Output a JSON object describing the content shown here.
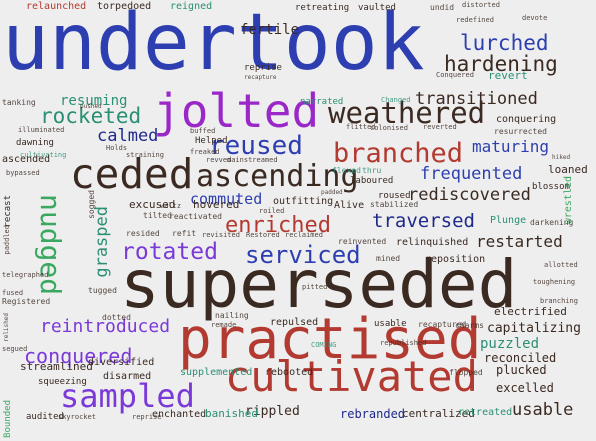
{
  "colors": {
    "background": "#eeeeee",
    "blue": "#2d3fb0",
    "purple": "#9a28c8",
    "darkbrown": "#3b2a22",
    "red": "#b23a30",
    "green": "#3aa860",
    "teal": "#2a8f74",
    "navy": "#1f2a8c",
    "violet": "#7b3ad8",
    "gray": "#8a8a8a"
  },
  "words": [
    {
      "id": "undertook",
      "text": "undertook",
      "color": "blue"
    },
    {
      "id": "superseded",
      "text": "superseded",
      "color": "darkbrown"
    },
    {
      "id": "practised",
      "text": "practised",
      "color": "red"
    },
    {
      "id": "jolted",
      "text": "jolted",
      "color": "purple"
    },
    {
      "id": "cultivated",
      "text": "cultivated",
      "color": "red"
    },
    {
      "id": "weathered",
      "text": "weathered",
      "color": "darkbrown"
    },
    {
      "id": "ceded",
      "text": "ceded",
      "color": "darkbrown"
    },
    {
      "id": "ascending",
      "text": "ascending",
      "color": "darkbrown"
    },
    {
      "id": "reused",
      "text": "reused",
      "color": "blue"
    },
    {
      "id": "branched",
      "text": "branched",
      "color": "red"
    },
    {
      "id": "sampled",
      "text": "sampled",
      "color": "violet"
    },
    {
      "id": "rotated",
      "text": "rotated",
      "color": "violet"
    },
    {
      "id": "serviced",
      "text": "serviced",
      "color": "blue"
    },
    {
      "id": "enriched",
      "text": "enriched",
      "color": "red"
    },
    {
      "id": "nudged",
      "text": "nudged",
      "color": "green"
    },
    {
      "id": "lurched",
      "text": "lurched",
      "color": "blue"
    },
    {
      "id": "hardening",
      "text": "hardening",
      "color": "darkbrown"
    },
    {
      "id": "rocketed",
      "text": "rocketed",
      "color": "teal"
    },
    {
      "id": "transitioned",
      "text": "transitioned",
      "color": "darkbrown"
    },
    {
      "id": "calmed",
      "text": "calmed",
      "color": "navy"
    },
    {
      "id": "resuming",
      "text": "resuming",
      "color": "teal"
    },
    {
      "id": "maturing",
      "text": "maturing",
      "color": "blue"
    },
    {
      "id": "frequented",
      "text": "frequented",
      "color": "blue"
    },
    {
      "id": "rediscovered",
      "text": "rediscovered",
      "color": "darkbrown"
    },
    {
      "id": "traversed",
      "text": "traversed",
      "color": "navy"
    },
    {
      "id": "commuted",
      "text": "commuted",
      "color": "blue"
    },
    {
      "id": "restarted",
      "text": "restarted",
      "color": "darkbrown"
    },
    {
      "id": "reintroduced",
      "text": "reintroduced",
      "color": "violet"
    },
    {
      "id": "conquered-big",
      "text": "conquered",
      "color": "violet"
    },
    {
      "id": "usable-big",
      "text": "usable",
      "color": "darkbrown"
    },
    {
      "id": "grasped",
      "text": "grasped",
      "color": "teal"
    },
    {
      "id": "capitalizing",
      "text": "capitalizing",
      "color": "darkbrown"
    },
    {
      "id": "puzzled",
      "text": "puzzled",
      "color": "teal"
    },
    {
      "id": "excelled",
      "text": "excelled",
      "color": "darkbrown"
    },
    {
      "id": "plucked",
      "text": "plucked",
      "color": "darkbrown"
    },
    {
      "id": "reconciled",
      "text": "reconciled",
      "color": "darkbrown"
    },
    {
      "id": "electrified",
      "text": "electrified",
      "color": "darkbrown"
    },
    {
      "id": "rippled",
      "text": "rippled",
      "color": "darkbrown"
    },
    {
      "id": "rebranded",
      "text": "rebranded",
      "color": "navy"
    },
    {
      "id": "centralized",
      "text": "centralized",
      "color": "darkbrown"
    },
    {
      "id": "retreated",
      "text": "retreated",
      "color": "teal"
    },
    {
      "id": "banished",
      "text": "banished",
      "color": "teal"
    },
    {
      "id": "enchanted",
      "text": "enchanted",
      "color": "darkbrown"
    },
    {
      "id": "rebooted",
      "text": "rebooted",
      "color": "darkbrown"
    },
    {
      "id": "supplemented",
      "text": "supplemented",
      "color": "teal"
    },
    {
      "id": "disarmed",
      "text": "disarmed",
      "color": "darkbrown"
    },
    {
      "id": "diversified",
      "text": "diversified",
      "color": "darkbrown"
    },
    {
      "id": "streamlined",
      "text": "streamlined",
      "color": "darkbrown"
    },
    {
      "id": "squeezing",
      "text": "squeezing",
      "color": "darkbrown"
    },
    {
      "id": "audited",
      "text": "audited",
      "color": "darkbrown"
    },
    {
      "id": "skyrocket",
      "text": "skyrocket",
      "color": "darkbrown"
    },
    {
      "id": "reprise-bottom",
      "text": "reprise",
      "color": "darkbrown"
    },
    {
      "id": "bounded",
      "text": "Bounded",
      "color": "green"
    },
    {
      "id": "relaunched",
      "text": "relaunched",
      "color": "red"
    },
    {
      "id": "torpedoed",
      "text": "torpedoed",
      "color": "darkbrown"
    },
    {
      "id": "reigned",
      "text": "reigned",
      "color": "teal"
    },
    {
      "id": "fertile",
      "text": "fertile",
      "color": "darkbrown"
    },
    {
      "id": "retreating",
      "text": "retreating",
      "color": "darkbrown"
    },
    {
      "id": "vaulted",
      "text": "vaulted",
      "color": "darkbrown"
    },
    {
      "id": "undid",
      "text": "undid",
      "color": "darkbrown"
    },
    {
      "id": "distorted",
      "text": "distorted",
      "color": "darkbrown"
    },
    {
      "id": "redefined",
      "text": "redefined",
      "color": "darkbrown"
    },
    {
      "id": "devote",
      "text": "devote",
      "color": "darkbrown"
    },
    {
      "id": "conquered-small",
      "text": "Conquered",
      "color": "darkbrown"
    },
    {
      "id": "revert",
      "text": "revert",
      "color": "teal"
    },
    {
      "id": "reprise-top",
      "text": "reprise",
      "color": "darkbrown"
    },
    {
      "id": "tanking",
      "text": "tanking",
      "color": "darkbrown"
    },
    {
      "id": "narrated",
      "text": "narrated",
      "color": "teal"
    },
    {
      "id": "changed",
      "text": "Changed",
      "color": "teal"
    },
    {
      "id": "conquering",
      "text": "conquering",
      "color": "darkbrown"
    },
    {
      "id": "resurrected",
      "text": "resurrected",
      "color": "darkbrown"
    },
    {
      "id": "illuminated",
      "text": "illuminated",
      "color": "darkbrown"
    },
    {
      "id": "dawning",
      "text": "dawning",
      "color": "darkbrown"
    },
    {
      "id": "cultivating",
      "text": "cultivating",
      "color": "teal"
    },
    {
      "id": "straining",
      "text": "straining",
      "color": "darkbrown"
    },
    {
      "id": "helped",
      "text": "Helped",
      "color": "darkbrown"
    },
    {
      "id": "holds",
      "text": "Holds",
      "color": "darkbrown"
    },
    {
      "id": "revved",
      "text": "revved",
      "color": "darkbrown"
    },
    {
      "id": "mainstreamed",
      "text": "mainstreamed",
      "color": "darkbrown"
    },
    {
      "id": "flitted",
      "text": "flitted",
      "color": "darkbrown"
    },
    {
      "id": "colonised",
      "text": "colonised",
      "color": "darkbrown"
    },
    {
      "id": "reverted",
      "text": "reverted",
      "color": "darkbrown"
    },
    {
      "id": "flexed",
      "text": "flexed",
      "color": "teal"
    },
    {
      "id": "thru",
      "text": "thru",
      "color": "teal"
    },
    {
      "id": "laboured",
      "text": "laboured",
      "color": "darkbrown"
    },
    {
      "id": "ascended",
      "text": "ascended",
      "color": "darkbrown"
    },
    {
      "id": "bypassed",
      "text": "bypassed",
      "color": "darkbrown"
    },
    {
      "id": "loaned",
      "text": "loaned",
      "color": "darkbrown"
    },
    {
      "id": "blossom",
      "text": "blossom",
      "color": "darkbrown"
    },
    {
      "id": "excused",
      "text": "excused",
      "color": "darkbrown"
    },
    {
      "id": "hovered",
      "text": "hovered",
      "color": "darkbrown"
    },
    {
      "id": "outfitting",
      "text": "outfitting",
      "color": "darkbrown"
    },
    {
      "id": "alive",
      "text": "Alive",
      "color": "darkbrown"
    },
    {
      "id": "stabilized",
      "text": "stabilized",
      "color": "darkbrown"
    },
    {
      "id": "roused",
      "text": "roused",
      "color": "darkbrown"
    },
    {
      "id": "wrestled",
      "text": "wrestled",
      "color": "green"
    },
    {
      "id": "tilted",
      "text": "tilted",
      "color": "darkbrown"
    },
    {
      "id": "reactivated",
      "text": "reactivated",
      "color": "darkbrown"
    },
    {
      "id": "waltz",
      "text": "waltz",
      "color": "darkbrown"
    },
    {
      "id": "roiled",
      "text": "roiled",
      "color": "darkbrown"
    },
    {
      "id": "plunge",
      "text": "Plunge",
      "color": "teal"
    },
    {
      "id": "darkening",
      "text": "darkening",
      "color": "darkbrown"
    },
    {
      "id": "recast",
      "text": "recast",
      "color": "darkbrown"
    },
    {
      "id": "sogged",
      "text": "sogged",
      "color": "darkbrown"
    },
    {
      "id": "resided",
      "text": "resided",
      "color": "darkbrown"
    },
    {
      "id": "refit",
      "text": "refit",
      "color": "darkbrown"
    },
    {
      "id": "revisited",
      "text": "revisited",
      "color": "darkbrown"
    },
    {
      "id": "restored",
      "text": "Restored",
      "color": "darkbrown"
    },
    {
      "id": "reclaimed",
      "text": "reclaimed",
      "color": "darkbrown"
    },
    {
      "id": "reinvented",
      "text": "reinvented",
      "color": "darkbrown"
    },
    {
      "id": "relinquished",
      "text": "relinquished",
      "color": "darkbrown"
    },
    {
      "id": "mined",
      "text": "mined",
      "color": "darkbrown"
    },
    {
      "id": "reposition",
      "text": "reposition",
      "color": "darkbrown"
    },
    {
      "id": "allotted",
      "text": "allotted",
      "color": "darkbrown"
    },
    {
      "id": "toughening",
      "text": "toughening",
      "color": "darkbrown"
    },
    {
      "id": "tugged",
      "text": "tugged",
      "color": "darkbrown"
    },
    {
      "id": "pitted",
      "text": "pitted",
      "color": "darkbrown"
    },
    {
      "id": "dotted",
      "text": "dotted",
      "color": "darkbrown"
    },
    {
      "id": "nailing",
      "text": "nailing",
      "color": "darkbrown"
    },
    {
      "id": "remade",
      "text": "remade",
      "color": "darkbrown"
    },
    {
      "id": "repulsed",
      "text": "repulsed",
      "color": "darkbrown"
    },
    {
      "id": "usable-small",
      "text": "usable",
      "color": "darkbrown"
    },
    {
      "id": "recaptured",
      "text": "recaptured",
      "color": "darkbrown"
    },
    {
      "id": "charms",
      "text": "charms",
      "color": "darkbrown"
    },
    {
      "id": "coming",
      "text": "COMING",
      "color": "teal"
    },
    {
      "id": "republished",
      "text": "republished",
      "color": "darkbrown"
    },
    {
      "id": "flopped",
      "text": "flopped",
      "color": "darkbrown"
    },
    {
      "id": "segued",
      "text": "segued",
      "color": "darkbrown"
    },
    {
      "id": "fused",
      "text": "fused",
      "color": "darkbrown"
    },
    {
      "id": "registered",
      "text": "Registered",
      "color": "darkbrown"
    },
    {
      "id": "telegraphed",
      "text": "telegraphed",
      "color": "darkbrown"
    },
    {
      "id": "branching",
      "text": "branching",
      "color": "darkbrown"
    },
    {
      "id": "recapture",
      "text": "recapture",
      "color": "darkbrown"
    },
    {
      "id": "pushed",
      "text": "pushed",
      "color": "darkbrown"
    },
    {
      "id": "buffed",
      "text": "buffed",
      "color": "darkbrown"
    },
    {
      "id": "freaked",
      "text": "freaked",
      "color": "darkbrown"
    },
    {
      "id": "hiked",
      "text": "hiked",
      "color": "darkbrown"
    },
    {
      "id": "padded",
      "text": "padded",
      "color": "darkbrown"
    },
    {
      "id": "paddled",
      "text": "paddled",
      "color": "darkbrown"
    },
    {
      "id": "relished",
      "text": "relished",
      "color": "darkbrown"
    }
  ]
}
